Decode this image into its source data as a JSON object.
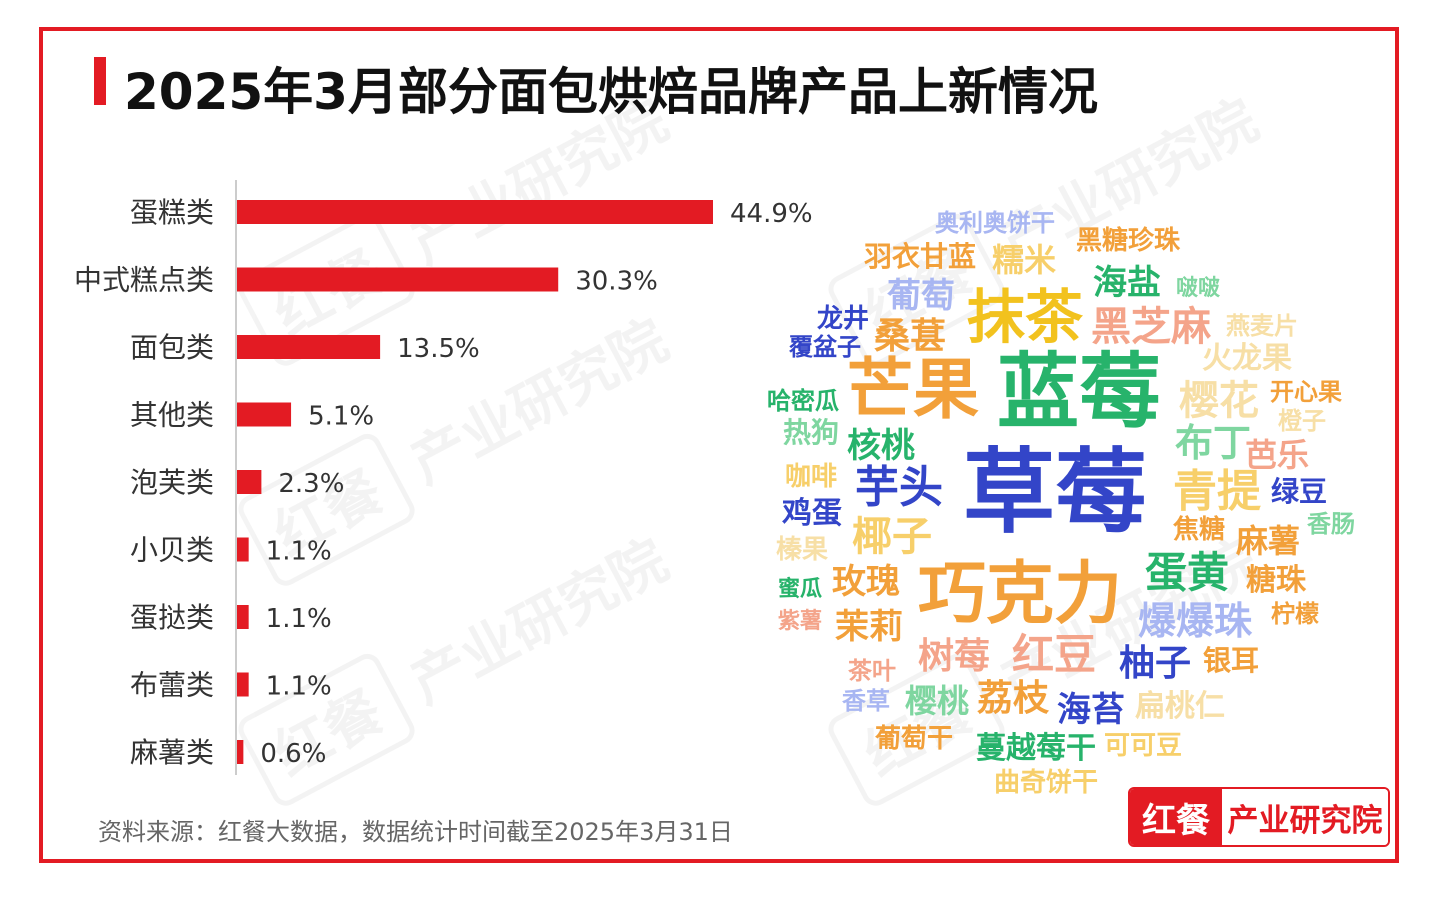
{
  "title": "2025年3月部分面包烘焙品牌产品上新情况",
  "source": "资料来源：红餐大数据，数据统计时间截至2025年3月31日",
  "logo": {
    "left": "红餐",
    "right": "产业研究院"
  },
  "watermark": {
    "box": "红餐",
    "text": "产业研究院"
  },
  "colors": {
    "accent": "#e31b23",
    "bar": "#e31b23"
  },
  "chart_data": {
    "type": "bar",
    "orientation": "horizontal",
    "title": "2025年3月部分面包烘焙品牌产品上新情况",
    "categories": [
      "蛋糕类",
      "中式糕点类",
      "面包类",
      "其他类",
      "泡芙类",
      "小贝类",
      "蛋挞类",
      "布蕾类",
      "麻薯类"
    ],
    "values": [
      44.9,
      30.3,
      13.5,
      5.1,
      2.3,
      1.1,
      1.1,
      1.1,
      0.6
    ],
    "labels": [
      "44.9%",
      "30.3%",
      "13.5%",
      "5.1%",
      "2.3%",
      "1.1%",
      "1.1%",
      "1.1%",
      "0.6%"
    ],
    "unit": "%",
    "xlim": [
      0,
      50
    ],
    "grid": false,
    "legend": "none"
  },
  "word_cloud": [
    {
      "t": "奥利奥饼干",
      "c": "#a8b6f2"
    },
    {
      "t": "黑糖珍珠",
      "c": "#f2a03a"
    },
    {
      "t": "羽衣甘蓝",
      "c": "#f2a03a"
    },
    {
      "t": "糯米",
      "c": "#f7cf6a"
    },
    {
      "t": "海盐",
      "c": "#27b36b"
    },
    {
      "t": "啵啵",
      "c": "#7fd6a0"
    },
    {
      "t": "葡萄",
      "c": "#a8b6f2"
    },
    {
      "t": "抹茶",
      "c": "#f2c21e"
    },
    {
      "t": "黑芝麻",
      "c": "#f4a48a"
    },
    {
      "t": "燕麦片",
      "c": "#f7dfa6"
    },
    {
      "t": "龙井",
      "c": "#3345c8"
    },
    {
      "t": "覆盆子",
      "c": "#3345c8"
    },
    {
      "t": "桑葚",
      "c": "#f2a03a"
    },
    {
      "t": "火龙果",
      "c": "#f7dfa6"
    },
    {
      "t": "芒果",
      "c": "#f2a03a"
    },
    {
      "t": "蓝莓",
      "c": "#27b36b"
    },
    {
      "t": "樱花",
      "c": "#f7dfa6"
    },
    {
      "t": "开心果",
      "c": "#f2a03a"
    },
    {
      "t": "哈密瓜",
      "c": "#27b36b"
    },
    {
      "t": "橙子",
      "c": "#f7dfa6"
    },
    {
      "t": "热狗",
      "c": "#7fd6a0"
    },
    {
      "t": "核桃",
      "c": "#27b36b"
    },
    {
      "t": "布丁",
      "c": "#7fd6a0"
    },
    {
      "t": "芭乐",
      "c": "#f4a48a"
    },
    {
      "t": "咖啡",
      "c": "#f7cf6a"
    },
    {
      "t": "芋头",
      "c": "#3345c8"
    },
    {
      "t": "草莓",
      "c": "#3345c8"
    },
    {
      "t": "青提",
      "c": "#f7cf6a"
    },
    {
      "t": "绿豆",
      "c": "#3345c8"
    },
    {
      "t": "鸡蛋",
      "c": "#3345c8"
    },
    {
      "t": "焦糖",
      "c": "#f2a03a"
    },
    {
      "t": "香肠",
      "c": "#7fd6a0"
    },
    {
      "t": "榛果",
      "c": "#f7dfa6"
    },
    {
      "t": "椰子",
      "c": "#f7cf6a"
    },
    {
      "t": "麻薯",
      "c": "#f2a03a"
    },
    {
      "t": "蛋黄",
      "c": "#27b36b"
    },
    {
      "t": "蜜瓜",
      "c": "#27b36b"
    },
    {
      "t": "玫瑰",
      "c": "#f2a03a"
    },
    {
      "t": "巧克力",
      "c": "#f2a03a"
    },
    {
      "t": "糖珠",
      "c": "#f2a03a"
    },
    {
      "t": "紫薯",
      "c": "#f4a48a"
    },
    {
      "t": "茉莉",
      "c": "#f2a03a"
    },
    {
      "t": "爆爆珠",
      "c": "#a8b6f2"
    },
    {
      "t": "柠檬",
      "c": "#f2a03a"
    },
    {
      "t": "茶叶",
      "c": "#f4a48a"
    },
    {
      "t": "树莓",
      "c": "#f4a48a"
    },
    {
      "t": "红豆",
      "c": "#f4a48a"
    },
    {
      "t": "柚子",
      "c": "#3345c8"
    },
    {
      "t": "银耳",
      "c": "#f2a03a"
    },
    {
      "t": "香草",
      "c": "#a8b6f2"
    },
    {
      "t": "樱桃",
      "c": "#7fd6a0"
    },
    {
      "t": "荔枝",
      "c": "#f2a03a"
    },
    {
      "t": "海苔",
      "c": "#3345c8"
    },
    {
      "t": "扁桃仁",
      "c": "#f7dfa6"
    },
    {
      "t": "葡萄干",
      "c": "#f2a03a"
    },
    {
      "t": "蔓越莓干",
      "c": "#27b36b"
    },
    {
      "t": "可可豆",
      "c": "#f7cf6a"
    },
    {
      "t": "曲奇饼干",
      "c": "#f7cf6a"
    }
  ]
}
